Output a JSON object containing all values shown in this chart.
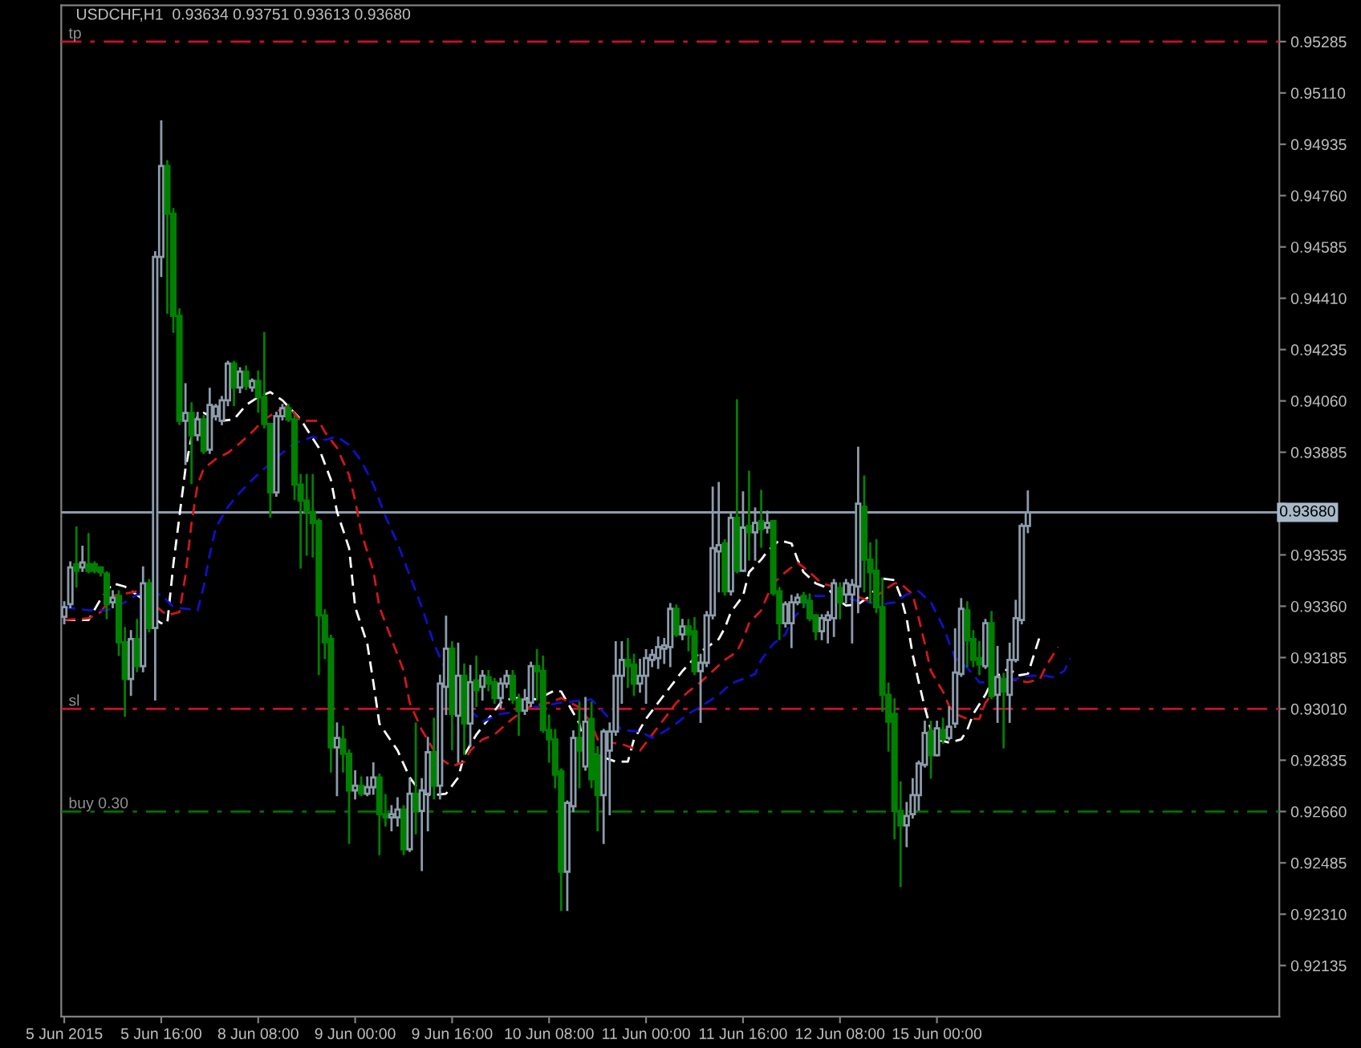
{
  "chart_data": {
    "type": "candlestick",
    "title": "USDCHF,H1  0.93634 0.93751 0.93613 0.93680",
    "categories": [
      "5 Jun 2015",
      null,
      null,
      null,
      null,
      null,
      null,
      null,
      null,
      null,
      null,
      null,
      null,
      null,
      null,
      null,
      "5 Jun 16:00",
      null,
      null,
      null,
      null,
      null,
      null,
      null,
      null,
      null,
      null,
      null,
      null,
      null,
      null,
      null,
      "8 Jun 08:00",
      null,
      null,
      null,
      null,
      null,
      null,
      null,
      null,
      null,
      null,
      null,
      null,
      null,
      null,
      null,
      "9 Jun 00:00",
      null,
      null,
      null,
      null,
      null,
      null,
      null,
      null,
      null,
      null,
      null,
      null,
      null,
      null,
      null,
      "9 Jun 16:00",
      null,
      null,
      null,
      null,
      null,
      null,
      null,
      null,
      null,
      null,
      null,
      null,
      null,
      null,
      null,
      "10 Jun 08:00",
      null,
      null,
      null,
      null,
      null,
      null,
      null,
      null,
      null,
      null,
      null,
      null,
      null,
      null,
      null,
      "11 Jun 00:00",
      null,
      null,
      null,
      null,
      null,
      null,
      null,
      null,
      null,
      null,
      null,
      null,
      null,
      null,
      null,
      "11 Jun 16:00",
      null,
      null,
      null,
      null,
      null,
      null,
      null,
      null,
      null,
      null,
      null,
      null,
      null,
      null,
      null,
      "12 Jun 08:00",
      null,
      null,
      null,
      null,
      null,
      null,
      null,
      null,
      null,
      null,
      null,
      null,
      null,
      null,
      null,
      "15 Jun 00:00",
      null,
      null,
      null,
      null,
      null,
      null,
      null,
      null,
      null,
      null,
      null,
      null,
      null,
      null,
      null,
      null,
      null,
      null,
      null,
      null,
      null,
      null,
      null,
      null,
      null,
      null,
      null,
      null,
      null,
      null,
      null,
      null,
      null,
      null,
      null,
      null,
      null,
      null,
      null,
      null,
      null,
      null,
      null,
      null,
      null,
      null,
      null,
      null,
      null,
      null,
      null,
      null,
      null,
      null,
      null,
      null
    ],
    "ohlc": [
      [
        0.93324,
        0.93373,
        0.93302,
        0.93357
      ],
      [
        0.93367,
        0.93509,
        0.93357,
        0.93492
      ],
      [
        0.93503,
        0.93628,
        0.93427,
        0.93481
      ],
      [
        0.93492,
        0.93563,
        0.93481,
        0.93509
      ],
      [
        0.93503,
        0.93606,
        0.93476,
        0.93481
      ],
      [
        0.93503,
        0.93509,
        0.93476,
        0.93481
      ],
      [
        0.93492,
        0.93492,
        0.93465,
        0.93476
      ],
      [
        0.93471,
        0.93476,
        0.93319,
        0.93367
      ],
      [
        0.93373,
        0.93411,
        0.93357,
        0.93389
      ],
      [
        0.93395,
        0.93411,
        0.93194,
        0.93237
      ],
      [
        0.93237,
        0.93286,
        0.92987,
        0.93112
      ],
      [
        0.93112,
        0.93275,
        0.93058,
        0.93248
      ],
      [
        0.93248,
        0.93313,
        0.93139,
        0.93156
      ],
      [
        0.93156,
        0.93492,
        0.93139,
        0.93438
      ],
      [
        0.93438,
        0.93449,
        0.93275,
        0.93286
      ],
      [
        0.93286,
        0.94567,
        0.93042,
        0.94551
      ],
      [
        0.94551,
        0.95013,
        0.94486,
        0.94861
      ],
      [
        0.94861,
        0.94877,
        0.94361,
        0.94698
      ],
      [
        0.94698,
        0.94714,
        0.94296,
        0.9435
      ],
      [
        0.9435,
        0.94372,
        0.93981,
        0.93992
      ],
      [
        0.93992,
        0.94117,
        0.93845,
        0.94019
      ],
      [
        0.94019,
        0.94052,
        0.9378,
        0.93943
      ],
      [
        0.93943,
        0.94019,
        0.93927,
        0.93997
      ],
      [
        0.93997,
        0.94008,
        0.93883,
        0.93889
      ],
      [
        0.93894,
        0.94101,
        0.93883,
        0.94046
      ],
      [
        0.94008,
        0.94046,
        0.93997,
        0.94041
      ],
      [
        0.93992,
        0.94073,
        0.93981,
        0.94062
      ],
      [
        0.94062,
        0.94193,
        0.94046,
        0.94187
      ],
      [
        0.94187,
        0.94193,
        0.94046,
        0.94106
      ],
      [
        0.94106,
        0.94171,
        0.9409,
        0.9416
      ],
      [
        0.9416,
        0.94177,
        0.94101,
        0.94111
      ],
      [
        0.94106,
        0.94133,
        0.94095,
        0.94128
      ],
      [
        0.94128,
        0.9416,
        0.94024,
        0.94073
      ],
      [
        0.94073,
        0.94291,
        0.9397,
        0.93981
      ],
      [
        0.93981,
        0.93981,
        0.93666,
        0.93748
      ],
      [
        0.93748,
        0.94019,
        0.93737,
        0.94008
      ],
      [
        0.94008,
        0.94046,
        0.93997,
        0.94035
      ],
      [
        0.94035,
        0.94046,
        0.93992,
        0.93997
      ],
      [
        0.93997,
        0.94008,
        0.93726,
        0.93775
      ],
      [
        0.93775,
        0.93807,
        0.93492,
        0.9372
      ],
      [
        0.9372,
        0.93807,
        0.93536,
        0.93682
      ],
      [
        0.93682,
        0.93807,
        0.9353,
        0.93644
      ],
      [
        0.9365,
        0.93655,
        0.93129,
        0.93329
      ],
      [
        0.93329,
        0.93346,
        0.93183,
        0.93237
      ],
      [
        0.93248,
        0.93259,
        0.92797,
        0.92879
      ],
      [
        0.92879,
        0.9296,
        0.92716,
        0.92911
      ],
      [
        0.92906,
        0.92949,
        0.92797,
        0.92857
      ],
      [
        0.92857,
        0.92868,
        0.92553,
        0.92732
      ],
      [
        0.92732,
        0.92797,
        0.92705,
        0.92748
      ],
      [
        0.92748,
        0.92776,
        0.92716,
        0.92721
      ],
      [
        0.92721,
        0.92776,
        0.92716,
        0.92743
      ],
      [
        0.92743,
        0.92824,
        0.92721,
        0.92776
      ],
      [
        0.92776,
        0.92786,
        0.92515,
        0.92651
      ],
      [
        0.92651,
        0.92716,
        0.92613,
        0.9264
      ],
      [
        0.9264,
        0.92678,
        0.92596,
        0.92651
      ],
      [
        0.9264,
        0.92705,
        0.92613,
        0.92667
      ],
      [
        0.92667,
        0.92678,
        0.92515,
        0.92531
      ],
      [
        0.92531,
        0.9277,
        0.92526,
        0.92721
      ],
      [
        0.92721,
        0.9296,
        0.92586,
        0.92662
      ],
      [
        0.92662,
        0.9277,
        0.92461,
        0.92732
      ],
      [
        0.92721,
        0.92911,
        0.92596,
        0.92862
      ],
      [
        0.92862,
        0.92976,
        0.92705,
        0.92748
      ],
      [
        0.92748,
        0.93123,
        0.92705,
        0.93096
      ],
      [
        0.93085,
        0.93324,
        0.92993,
        0.93215
      ],
      [
        0.93215,
        0.93237,
        0.92873,
        0.92993
      ],
      [
        0.92987,
        0.93232,
        0.9283,
        0.93123
      ],
      [
        0.93123,
        0.93161,
        0.92857,
        0.9296
      ],
      [
        0.9296,
        0.93156,
        0.92884,
        0.93101
      ],
      [
        0.93107,
        0.93188,
        0.9302,
        0.93074
      ],
      [
        0.93085,
        0.93139,
        0.93042,
        0.93123
      ],
      [
        0.93118,
        0.93139,
        0.93074,
        0.93096
      ],
      [
        0.93101,
        0.93112,
        0.93031,
        0.93047
      ],
      [
        0.93047,
        0.93112,
        0.93015,
        0.93096
      ],
      [
        0.93096,
        0.93139,
        0.93085,
        0.93123
      ],
      [
        0.93123,
        0.93139,
        0.93031,
        0.93042
      ],
      [
        0.93042,
        0.93058,
        0.92922,
        0.93004
      ],
      [
        0.93004,
        0.93074,
        0.92993,
        0.93042
      ],
      [
        0.93031,
        0.93167,
        0.9302,
        0.93156
      ],
      [
        0.93156,
        0.9321,
        0.93042,
        0.93139
      ],
      [
        0.93139,
        0.93188,
        0.92933,
        0.92938
      ],
      [
        0.92938,
        0.92987,
        0.9283,
        0.92906
      ],
      [
        0.92906,
        0.92938,
        0.92743,
        0.92786
      ],
      [
        0.92797,
        0.92803,
        0.92325,
        0.92455
      ],
      [
        0.92455,
        0.92694,
        0.92325,
        0.92689
      ],
      [
        0.92678,
        0.92933,
        0.92662,
        0.92911
      ],
      [
        0.92911,
        0.93031,
        0.92743,
        0.92868
      ],
      [
        0.92814,
        0.93047,
        0.92803,
        0.92966
      ],
      [
        0.92976,
        0.93031,
        0.92743,
        0.9277
      ],
      [
        0.92852,
        0.92879,
        0.92596,
        0.92716
      ],
      [
        0.92716,
        0.92938,
        0.92553,
        0.92933
      ],
      [
        0.92868,
        0.9296,
        0.92651,
        0.92933
      ],
      [
        0.92933,
        0.93237,
        0.92922,
        0.93123
      ],
      [
        0.93123,
        0.93237,
        0.93031,
        0.93177
      ],
      [
        0.93177,
        0.93248,
        0.93085,
        0.93156
      ],
      [
        0.93161,
        0.93194,
        0.93058,
        0.93096
      ],
      [
        0.93096,
        0.93177,
        0.93069,
        0.93123
      ],
      [
        0.93123,
        0.9321,
        0.93031,
        0.93183
      ],
      [
        0.93177,
        0.9321,
        0.93156,
        0.93194
      ],
      [
        0.93183,
        0.93253,
        0.9315,
        0.93221
      ],
      [
        0.93215,
        0.93248,
        0.93167,
        0.93226
      ],
      [
        0.93221,
        0.93367,
        0.93156,
        0.93351
      ],
      [
        0.93351,
        0.93362,
        0.93259,
        0.93264
      ],
      [
        0.93264,
        0.93313,
        0.93248,
        0.93291
      ],
      [
        0.93291,
        0.93313,
        0.9321,
        0.93264
      ],
      [
        0.93275,
        0.93319,
        0.93129,
        0.93139
      ],
      [
        0.93139,
        0.93194,
        0.92966,
        0.93167
      ],
      [
        0.93167,
        0.9334,
        0.93156,
        0.93329
      ],
      [
        0.93329,
        0.93764,
        0.93319,
        0.93558
      ],
      [
        0.93547,
        0.9378,
        0.93411,
        0.93568
      ],
      [
        0.93574,
        0.93585,
        0.934,
        0.93411
      ],
      [
        0.93411,
        0.93672,
        0.934,
        0.93661
      ],
      [
        0.93661,
        0.94062,
        0.93476,
        0.93481
      ],
      [
        0.93481,
        0.93748,
        0.93481,
        0.93628
      ],
      [
        0.93634,
        0.93818,
        0.93519,
        0.93612
      ],
      [
        0.93612,
        0.93693,
        0.93519,
        0.93644
      ],
      [
        0.9365,
        0.93753,
        0.93563,
        0.93623
      ],
      [
        0.93628,
        0.93682,
        0.93612,
        0.93644
      ],
      [
        0.9365,
        0.9365,
        0.934,
        0.93405
      ],
      [
        0.93411,
        0.93422,
        0.93248,
        0.93302
      ],
      [
        0.93302,
        0.93373,
        0.93291,
        0.93367
      ],
      [
        0.93302,
        0.93395,
        0.93221,
        0.93373
      ],
      [
        0.93373,
        0.934,
        0.93367,
        0.93389
      ],
      [
        0.93395,
        0.93405,
        0.93357,
        0.93373
      ],
      [
        0.93378,
        0.934,
        0.93313,
        0.93319
      ],
      [
        0.93329,
        0.93329,
        0.93248,
        0.93275
      ],
      [
        0.93275,
        0.93329,
        0.93248,
        0.93319
      ],
      [
        0.93313,
        0.9334,
        0.93237,
        0.93329
      ],
      [
        0.93319,
        0.93449,
        0.93259,
        0.93438
      ],
      [
        0.93422,
        0.93438,
        0.93319,
        0.93373
      ],
      [
        0.934,
        0.93449,
        0.93373,
        0.93438
      ],
      [
        0.934,
        0.93449,
        0.93237,
        0.93433
      ],
      [
        0.93427,
        0.939,
        0.9334,
        0.9371
      ],
      [
        0.93699,
        0.93802,
        0.93411,
        0.93519
      ],
      [
        0.93519,
        0.93574,
        0.93373,
        0.93476
      ],
      [
        0.93481,
        0.93585,
        0.9334,
        0.93357
      ],
      [
        0.93357,
        0.93454,
        0.93004,
        0.93058
      ],
      [
        0.93058,
        0.93096,
        0.92868,
        0.92966
      ],
      [
        0.92993,
        0.93042,
        0.92569,
        0.92662
      ],
      [
        0.92662,
        0.92759,
        0.92406,
        0.92613
      ],
      [
        0.92613,
        0.92689,
        0.92542,
        0.92645
      ],
      [
        0.92651,
        0.9277,
        0.9264,
        0.92716
      ],
      [
        0.92716,
        0.9283,
        0.92667,
        0.92824
      ],
      [
        0.92819,
        0.92966,
        0.92814,
        0.92928
      ],
      [
        0.92933,
        0.92966,
        0.92776,
        0.92852
      ],
      [
        0.92852,
        0.92966,
        0.92852,
        0.92944
      ],
      [
        0.92938,
        0.92976,
        0.92895,
        0.92906
      ],
      [
        0.92911,
        0.93015,
        0.92906,
        0.92949
      ],
      [
        0.9296,
        0.93281,
        0.92949,
        0.93134
      ],
      [
        0.93129,
        0.93384,
        0.93123,
        0.93351
      ],
      [
        0.93346,
        0.93373,
        0.93156,
        0.93243
      ],
      [
        0.93248,
        0.93275,
        0.93156,
        0.93177
      ],
      [
        0.93183,
        0.93237,
        0.93129,
        0.93161
      ],
      [
        0.93156,
        0.93313,
        0.9315,
        0.93302
      ],
      [
        0.93302,
        0.9334,
        0.93047,
        0.93053
      ],
      [
        0.93058,
        0.93221,
        0.92966,
        0.93118
      ],
      [
        0.93112,
        0.93129,
        0.92879,
        0.93069
      ],
      [
        0.93058,
        0.93232,
        0.92966,
        0.93177
      ],
      [
        0.93177,
        0.93378,
        0.93172,
        0.93319
      ],
      [
        0.93313,
        0.93639,
        0.93302,
        0.93634
      ],
      [
        0.93634,
        0.93751,
        0.93613,
        0.9368
      ],
      null,
      null,
      null,
      null,
      null,
      null,
      null,
      null,
      null,
      null,
      null,
      null,
      null,
      null,
      null,
      null,
      null,
      null,
      null,
      null,
      null,
      null,
      null,
      null,
      null,
      null,
      null,
      null,
      null,
      null,
      null,
      null,
      null,
      null,
      null,
      null,
      null,
      null,
      null,
      null,
      null
    ],
    "colors": [
      "#8c9cac",
      "#8c9cac",
      "#008000",
      "#8c9cac",
      "#008000",
      "#008000",
      "#008000",
      "#008000",
      "#8c9cac",
      "#008000",
      "#008000",
      "#8c9cac",
      "#008000",
      "#8c9cac",
      "#008000",
      "#8c9cac",
      "#8c9cac",
      "#008000",
      "#008000",
      "#008000",
      "#8c9cac",
      "#008000",
      "#8c9cac",
      "#008000",
      "#8c9cac",
      "#8c9cac",
      "#8c9cac",
      "#8c9cac",
      "#008000",
      "#8c9cac",
      "#008000",
      "#8c9cac",
      "#008000",
      "#008000",
      "#008000",
      "#8c9cac",
      "#8c9cac",
      "#008000",
      "#008000",
      "#008000",
      "#008000",
      "#008000",
      "#008000",
      "#008000",
      "#008000",
      "#8c9cac",
      "#008000",
      "#008000",
      "#8c9cac",
      "#008000",
      "#8c9cac",
      "#8c9cac",
      "#008000",
      "#008000",
      "#8c9cac",
      "#8c9cac",
      "#008000",
      "#8c9cac",
      "#008000",
      "#8c9cac",
      "#8c9cac",
      "#008000",
      "#8c9cac",
      "#8c9cac",
      "#008000",
      "#8c9cac",
      "#008000",
      "#8c9cac",
      "#008000",
      "#8c9cac",
      "#008000",
      "#008000",
      "#8c9cac",
      "#8c9cac",
      "#008000",
      "#008000",
      "#8c9cac",
      "#8c9cac",
      "#008000",
      "#008000",
      "#008000",
      "#008000",
      "#008000",
      "#8c9cac",
      "#8c9cac",
      "#008000",
      "#8c9cac",
      "#008000",
      "#008000",
      "#8c9cac",
      "#8c9cac",
      "#8c9cac",
      "#8c9cac",
      "#008000",
      "#008000",
      "#8c9cac",
      "#8c9cac",
      "#8c9cac",
      "#8c9cac",
      "#8c9cac",
      "#8c9cac",
      "#008000",
      "#8c9cac",
      "#008000",
      "#008000",
      "#8c9cac",
      "#8c9cac",
      "#8c9cac",
      "#8c9cac",
      "#008000",
      "#8c9cac",
      "#008000",
      "#8c9cac",
      "#008000",
      "#8c9cac",
      "#008000",
      "#8c9cac",
      "#008000",
      "#008000",
      "#8c9cac",
      "#8c9cac",
      "#8c9cac",
      "#008000",
      "#008000",
      "#008000",
      "#8c9cac",
      "#8c9cac",
      "#8c9cac",
      "#008000",
      "#8c9cac",
      "#8c9cac",
      "#8c9cac",
      "#008000",
      "#008000",
      "#008000",
      "#008000",
      "#008000",
      "#008000",
      "#008000",
      "#8c9cac",
      "#8c9cac",
      "#8c9cac",
      "#8c9cac",
      "#008000",
      "#8c9cac",
      "#008000",
      "#8c9cac",
      "#8c9cac",
      "#8c9cac",
      "#008000",
      "#008000",
      "#008000",
      "#8c9cac",
      "#008000",
      "#8c9cac",
      "#008000",
      "#8c9cac",
      "#8c9cac",
      "#8c9cac",
      "#8c9cac",
      null,
      null,
      null,
      null,
      null,
      null,
      null,
      null,
      null,
      null,
      null,
      null,
      null,
      null,
      null,
      null,
      null,
      null,
      null,
      null,
      null,
      null,
      null,
      null,
      null,
      null,
      null,
      null,
      null,
      null,
      null,
      null,
      null,
      null,
      null,
      null,
      null,
      null,
      null,
      null,
      null
    ],
    "series": [
      {
        "type": "line",
        "color": "#ffffff",
        "values": [
          0.93313,
          null,
          null,
          null,
          0.93313,
          null,
          0.93384,
          null,
          0.93438,
          null,
          0.93427,
          null,
          null,
          0.93384,
          0.93329,
          null,
          0.93302,
          0.93302,
          0.93503,
          0.93666,
          0.93829,
          0.93938,
          0.94008,
          0.94019,
          null,
          null,
          0.93992,
          null,
          0.93997,
          null,
          0.94046,
          null,
          0.94073,
          null,
          0.9409,
          null,
          0.94062,
          null,
          null,
          0.93997,
          null,
          null,
          0.939,
          null,
          0.93791,
          0.93682,
          null,
          0.93558,
          0.93357,
          null,
          0.93232,
          0.93101,
          0.9296,
          null,
          null,
          0.92868,
          null,
          0.92776,
          null,
          0.92721,
          null,
          0.92716,
          null,
          0.92721,
          null,
          0.92776,
          0.92852,
          null,
          0.92922,
          null,
          0.92976,
          null,
          0.93031,
          null,
          0.93047,
          null,
          0.93047,
          null,
          0.93042,
          null,
          null,
          0.93074,
          0.93069,
          null,
          null,
          0.9296,
          0.92857,
          null,
          0.92852,
          null,
          null,
          0.9283,
          null,
          0.9283,
          0.92906,
          null,
          0.92976,
          null,
          0.93031,
          null,
          0.93085,
          null,
          0.93139,
          null,
          null,
          0.93205,
          null,
          null,
          0.93248,
          0.93286,
          0.9334,
          null,
          0.93395,
          0.93476,
          null,
          0.93519,
          0.93547,
          null,
          0.93585,
          null,
          0.93574,
          0.93519,
          0.93476,
          null,
          0.93438,
          null,
          0.93422,
          0.93395,
          null,
          0.93362,
          null,
          0.93367,
          null,
          0.93395,
          null,
          0.93454,
          null,
          0.93449,
          0.93395,
          0.93319,
          0.93194,
          0.93101,
          0.93015,
          0.92938,
          0.92906,
          null,
          0.92895,
          null,
          0.92906,
          0.92938,
          0.92993,
          null,
          0.93058,
          0.93101,
          0.93123,
          null,
          0.9315,
          0.93123,
          null,
          0.93129,
          0.93194,
          0.93259,
          null,
          null,
          null,
          null,
          null,
          null,
          null,
          null,
          null,
          null,
          null,
          null,
          null,
          null,
          null,
          null,
          null,
          null,
          null,
          null,
          null,
          null,
          null,
          null,
          null,
          null,
          null,
          null,
          null,
          null,
          null,
          null,
          null,
          null,
          null,
          null,
          null,
          null,
          null
        ]
      },
      {
        "type": "line",
        "color": "#d01818",
        "values": [
          0.93313,
          null,
          null,
          null,
          0.93319,
          null,
          0.9334,
          null,
          0.93395,
          null,
          null,
          null,
          0.93411,
          null,
          null,
          null,
          null,
          0.93329,
          null,
          0.9334,
          0.93465,
          0.93644,
          0.93775,
          0.93829,
          null,
          0.93862,
          null,
          0.93883,
          null,
          0.93916,
          null,
          0.93954,
          null,
          0.93997,
          null,
          null,
          0.94035,
          0.94041,
          null,
          0.93992,
          null,
          null,
          0.93992,
          0.93954,
          null,
          0.939,
          null,
          0.93807,
          0.9372,
          0.93612,
          null,
          0.93481,
          0.93357,
          null,
          0.93248,
          null,
          0.93139,
          0.93031,
          null,
          0.92938,
          null,
          0.92868,
          0.92841,
          null,
          0.92814,
          null,
          0.9283,
          0.92868,
          null,
          0.92906,
          null,
          0.92922,
          null,
          0.9296,
          null,
          0.92993,
          null,
          0.9302,
          null,
          null,
          0.93031,
          null,
          0.93047,
          null,
          null,
          0.93015,
          null,
          0.9296,
          0.92906,
          null,
          0.92895,
          null,
          0.9289,
          null,
          null,
          0.92868,
          null,
          0.92922,
          null,
          0.92976,
          null,
          0.93031,
          null,
          0.93069,
          null,
          0.93101,
          null,
          0.93139,
          null,
          0.93177,
          null,
          0.93205,
          0.93248,
          0.93302,
          null,
          0.93346,
          0.93395,
          0.93438,
          null,
          0.93476,
          null,
          0.93509,
          null,
          0.93476,
          null,
          0.93438,
          null,
          0.93427,
          null,
          null,
          0.934,
          null,
          0.93384,
          0.93373,
          null,
          0.93411,
          null,
          0.93438,
          0.93438,
          null,
          0.934,
          0.93319,
          0.93232,
          0.93139,
          null,
          0.93069,
          0.9302,
          0.92993,
          null,
          0.92976,
          null,
          0.92976,
          0.93031,
          null,
          0.93085,
          null,
          0.93112,
          null,
          null,
          0.93101,
          null,
          0.93112,
          0.93156,
          null,
          0.93221,
          null,
          null,
          null,
          null,
          null,
          null,
          null,
          null,
          null,
          null,
          null,
          null,
          null,
          null,
          null,
          null,
          null,
          null,
          null,
          null,
          null,
          null,
          null,
          null,
          null,
          null,
          null,
          null,
          null,
          null,
          null,
          null,
          null,
          null,
          null,
          null
        ]
      },
      {
        "type": "line",
        "color": "#1010c8",
        "values": [
          0.93357,
          null,
          null,
          null,
          0.93346,
          null,
          null,
          0.93346,
          null,
          null,
          0.93373,
          null,
          0.934,
          null,
          null,
          null,
          0.934,
          null,
          0.93357,
          null,
          null,
          null,
          0.93346,
          0.93427,
          0.93536,
          0.93628,
          null,
          0.93699,
          null,
          0.93748,
          null,
          0.93791,
          null,
          0.93829,
          null,
          null,
          0.93883,
          null,
          0.93916,
          null,
          null,
          0.93938,
          null,
          0.93927,
          null,
          0.93938,
          null,
          0.9391,
          null,
          0.93856,
          null,
          0.93775,
          null,
          0.93666,
          null,
          0.93574,
          null,
          0.93465,
          null,
          0.93357,
          null,
          0.93232,
          null,
          0.93139,
          null,
          0.93069,
          null,
          0.93004,
          null,
          0.92966,
          null,
          null,
          0.92993,
          null,
          0.92998,
          null,
          null,
          0.93015,
          null,
          0.9302,
          null,
          null,
          0.93031,
          null,
          0.93036,
          null,
          null,
          0.93042,
          0.9302,
          null,
          0.92976,
          null,
          0.92938,
          null,
          null,
          0.92933,
          null,
          0.92911,
          null,
          0.92933,
          null,
          0.9296,
          null,
          0.92993,
          null,
          null,
          0.93031,
          null,
          0.93058,
          null,
          0.93096,
          null,
          0.93112,
          null,
          0.93129,
          0.93177,
          null,
          0.93232,
          null,
          0.93264,
          0.93313,
          null,
          0.93357,
          0.93395,
          null,
          null,
          0.93395,
          null,
          0.93395,
          null,
          null,
          0.93378,
          null,
          0.93373,
          null,
          0.93367,
          null,
          0.93373,
          null,
          0.934,
          null,
          0.93411,
          null,
          0.93373,
          null,
          0.93291,
          0.93237,
          0.93183,
          null,
          0.9315,
          null,
          0.93101,
          null,
          null,
          null,
          0.93096,
          null,
          0.93112,
          null,
          0.93123,
          null,
          null,
          0.93123,
          0.93118,
          null,
          0.93139,
          0.93183,
          null,
          null,
          null,
          null,
          null,
          null,
          null,
          null,
          null,
          null,
          null,
          null,
          null,
          null,
          null,
          null,
          null,
          null,
          null,
          null,
          null,
          null,
          null,
          null,
          null,
          null,
          null,
          null,
          null,
          null,
          null,
          null,
          null,
          null
        ]
      }
    ],
    "line_style": "dashed",
    "ylim": [
      0.91961,
      0.95409
    ],
    "yticks": [
      {
        "value": 0.95285,
        "label": "0.95285"
      },
      {
        "value": 0.9511,
        "label": "0.95110"
      },
      {
        "value": 0.94935,
        "label": "0.94935"
      },
      {
        "value": 0.9476,
        "label": "0.94760"
      },
      {
        "value": 0.94585,
        "label": "0.94585"
      },
      {
        "value": 0.9441,
        "label": "0.94410"
      },
      {
        "value": 0.94235,
        "label": "0.94235"
      },
      {
        "value": 0.9406,
        "label": "0.94060"
      },
      {
        "value": 0.93885,
        "label": "0.93885"
      },
      {
        "value": 0.9371,
        "label": null
      },
      {
        "value": 0.93535,
        "label": "0.93535"
      },
      {
        "value": 0.9336,
        "label": "0.93360"
      },
      {
        "value": 0.93185,
        "label": "0.93185"
      },
      {
        "value": 0.9301,
        "label": "0.93010"
      },
      {
        "value": 0.92835,
        "label": "0.92835"
      },
      {
        "value": 0.9266,
        "label": "0.92660"
      },
      {
        "value": 0.92485,
        "label": "0.92485"
      },
      {
        "value": 0.9231,
        "label": "0.92310"
      },
      {
        "value": 0.92135,
        "label": "0.92135"
      }
    ],
    "ref_lines": [
      {
        "axis": "y",
        "value": 0.95285,
        "label": "tp",
        "color": "#c8102e",
        "line_style": "dashdot"
      },
      {
        "axis": "y",
        "value": 0.9301,
        "label": "sl",
        "color": "#c8102e",
        "line_style": "dashdot"
      },
      {
        "axis": "y",
        "value": 0.9266,
        "label": "buy 0.30",
        "color": "#007000",
        "line_style": "dashdot"
      },
      {
        "axis": "y",
        "value": 0.9368,
        "label": "0.93680",
        "color": "#8c9cac",
        "line_style": "solid"
      }
    ]
  }
}
